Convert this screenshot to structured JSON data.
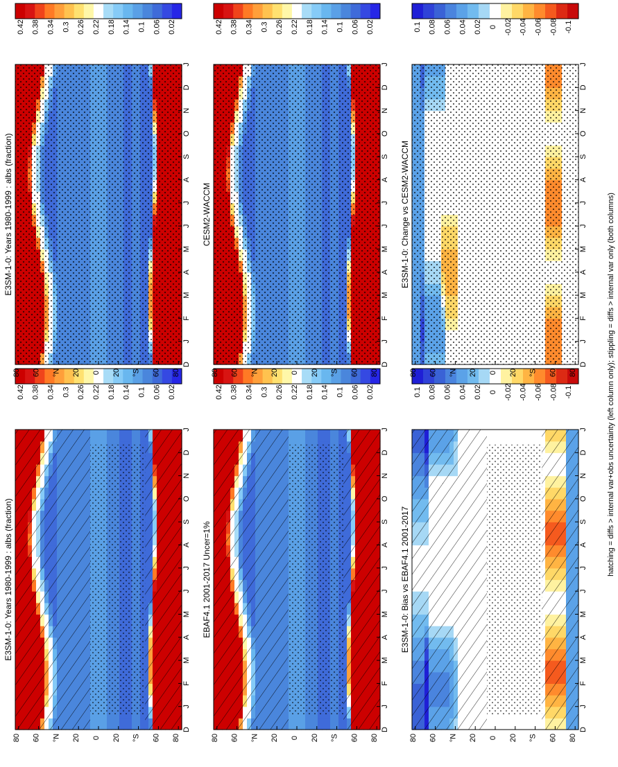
{
  "figure": {
    "footnote": "hatching = diffs > internal var+obs uncertainty (left column only); stippling = diffs > internal var only (both columns)"
  },
  "colors": {
    "abs_scale": [
      "#2626e6",
      "#3549e2",
      "#3f6bd9",
      "#4a86dc",
      "#5aa0e6",
      "#69b7ef",
      "#86cbf7",
      "#a8dcf7",
      "#ffffff",
      "#fff7a8",
      "#ffe170",
      "#ffc24f",
      "#ff9f3a",
      "#ff7a25",
      "#f0441b",
      "#d81412",
      "#cc0000"
    ],
    "diff_scale": [
      "#1f1fd6",
      "#2f42d8",
      "#3a62d6",
      "#4a84de",
      "#5ba2e8",
      "#72bbef",
      "#a6d8f5",
      "#ffffff",
      "#fff2a0",
      "#ffd867",
      "#ffb443",
      "#ff8b2d",
      "#f55a1e",
      "#dc2a14",
      "#c80a0a"
    ],
    "hatch": "#000000",
    "stipple": "#000000"
  },
  "chart_data": [
    {
      "type": "heatmap",
      "panel": "top-left",
      "title": "E3SM-1-0: Years 1980-1999 : albs (fraction)",
      "x_ticks": [
        "D",
        "J",
        "F",
        "M",
        "A",
        "M",
        "J",
        "J",
        "A",
        "S",
        "O",
        "N",
        "D",
        "J"
      ],
      "y_ticks": [
        "80",
        "60",
        "°N",
        "20",
        "0",
        "20",
        "°S",
        "60",
        "80"
      ],
      "colorbar_ticks": [
        "0.42",
        "0.38",
        "0.34",
        "0.3",
        "0.26",
        "0.22",
        "0.18",
        "0.14",
        "0.1",
        "0.06",
        "0.02"
      ],
      "colorbar_range": [
        0.0,
        0.46
      ],
      "field": "absolute",
      "overlay": "hatch_and_stipple"
    },
    {
      "type": "heatmap",
      "panel": "top-right",
      "title": "E3SM-1-0: Years 1980-1999 : albs (fraction)",
      "x_ticks": [
        "D",
        "J",
        "F",
        "M",
        "A",
        "M",
        "J",
        "J",
        "A",
        "S",
        "O",
        "N",
        "D",
        "J"
      ],
      "y_ticks": [
        "80",
        "60",
        "°N",
        "20",
        "0",
        "20",
        "°S",
        "60",
        "80"
      ],
      "colorbar_ticks": [
        "0.42",
        "0.38",
        "0.34",
        "0.3",
        "0.26",
        "0.22",
        "0.18",
        "0.14",
        "0.1",
        "0.06",
        "0.02"
      ],
      "colorbar_range": [
        0.0,
        0.46
      ],
      "field": "absolute",
      "overlay": "stipple"
    },
    {
      "type": "heatmap",
      "panel": "middle-left",
      "title": "EBAF4.1 2001-2017 Uncer=1%",
      "x_ticks": [
        "D",
        "J",
        "F",
        "M",
        "A",
        "M",
        "J",
        "J",
        "A",
        "S",
        "O",
        "N",
        "D",
        "J"
      ],
      "y_ticks": [
        "80",
        "60",
        "°N",
        "20",
        "0",
        "20",
        "°S",
        "60",
        "80"
      ],
      "colorbar_ticks": [
        "0.42",
        "0.38",
        "0.34",
        "0.3",
        "0.26",
        "0.22",
        "0.18",
        "0.14",
        "0.1",
        "0.06",
        "0.02"
      ],
      "colorbar_range": [
        0.0,
        0.46
      ],
      "field": "absolute",
      "overlay": "hatch_and_stipple"
    },
    {
      "type": "heatmap",
      "panel": "middle-right",
      "title": "CESM2-WACCM",
      "x_ticks": [
        "D",
        "J",
        "F",
        "M",
        "A",
        "M",
        "J",
        "J",
        "A",
        "S",
        "O",
        "N",
        "D",
        "J"
      ],
      "y_ticks": [
        "80",
        "60",
        "°N",
        "20",
        "0",
        "20",
        "°S",
        "60",
        "80"
      ],
      "colorbar_ticks": [
        "0.42",
        "0.38",
        "0.34",
        "0.3",
        "0.26",
        "0.22",
        "0.18",
        "0.14",
        "0.1",
        "0.06",
        "0.02"
      ],
      "colorbar_range": [
        0.0,
        0.46
      ],
      "field": "absolute",
      "overlay": "stipple"
    },
    {
      "type": "heatmap",
      "panel": "bottom-left",
      "title": "E3SM-1-0: Bias vs EBAF4.1 2001-2017",
      "x_ticks": [
        "D",
        "J",
        "F",
        "M",
        "A",
        "M",
        "J",
        "J",
        "A",
        "S",
        "O",
        "N",
        "D",
        "J"
      ],
      "y_ticks": [
        "80",
        "60",
        "°N",
        "20",
        "0",
        "20",
        "°S",
        "60",
        "80"
      ],
      "colorbar_ticks": [
        "0.1",
        "0.08",
        "0.06",
        "0.04",
        "0.02",
        "0",
        "-0.02",
        "-0.04",
        "-0.06",
        "-0.08",
        "-0.1"
      ],
      "colorbar_range": [
        -0.12,
        0.12
      ],
      "field": "difference",
      "overlay": "hatch_and_stipple"
    },
    {
      "type": "heatmap",
      "panel": "bottom-right",
      "title": "E3SM-1-0: Change vs CESM2-WACCM",
      "x_ticks": [
        "D",
        "J",
        "F",
        "M",
        "A",
        "M",
        "J",
        "J",
        "A",
        "S",
        "O",
        "N",
        "D",
        "J"
      ],
      "y_ticks": [
        "80",
        "60",
        "°N",
        "20",
        "0",
        "20",
        "°S",
        "60",
        "80"
      ],
      "colorbar_ticks": [
        "0.1",
        "0.08",
        "0.06",
        "0.04",
        "0.02",
        "0",
        "-0.02",
        "-0.04",
        "-0.06",
        "-0.08",
        "-0.1"
      ],
      "colorbar_range": [
        -0.12,
        0.12
      ],
      "field": "difference",
      "overlay": "stipple"
    }
  ]
}
